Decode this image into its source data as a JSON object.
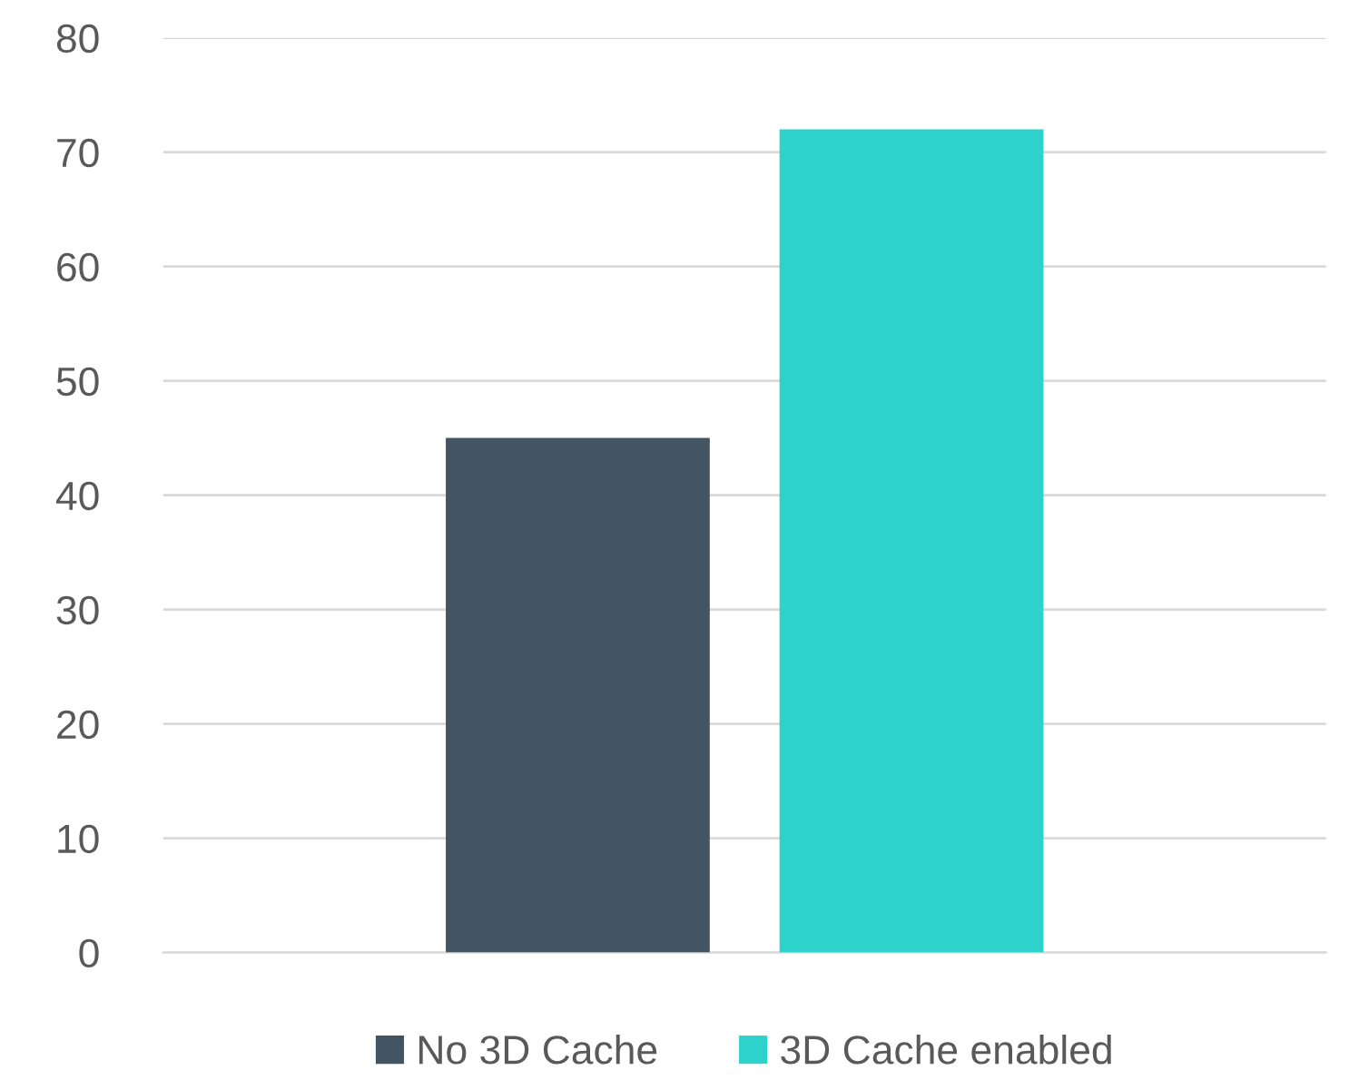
{
  "chart_data": {
    "type": "bar",
    "categories": [
      null
    ],
    "series": [
      {
        "name": "No 3D Cache",
        "color": "#435563",
        "values": [
          45
        ]
      },
      {
        "name": "3D Cache enabled",
        "color": "#2dd3ca",
        "values": [
          72
        ]
      }
    ],
    "ylim": [
      0,
      80
    ],
    "yticks": [
      0,
      10,
      20,
      30,
      40,
      50,
      60,
      70,
      80
    ],
    "grid": "y",
    "legend": "bottom"
  }
}
